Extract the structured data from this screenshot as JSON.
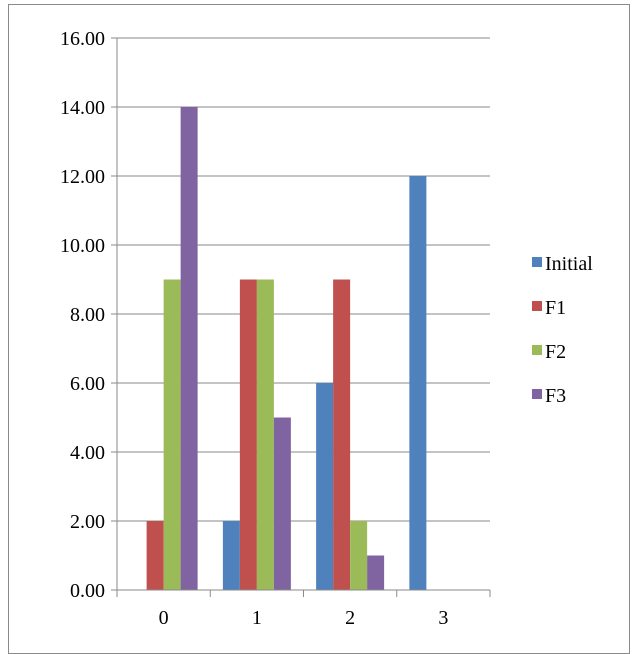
{
  "chart_data": {
    "type": "bar",
    "categories": [
      "0",
      "1",
      "2",
      "3"
    ],
    "series": [
      {
        "name": "Initial",
        "color": "#4F81BD",
        "values": [
          0,
          2,
          6,
          12
        ]
      },
      {
        "name": "F1",
        "color": "#C0504D",
        "values": [
          2,
          9,
          9,
          0
        ]
      },
      {
        "name": "F2",
        "color": "#9BBB59",
        "values": [
          9,
          9,
          2,
          0
        ]
      },
      {
        "name": "F3",
        "color": "#8064A2",
        "values": [
          14,
          5,
          1,
          0
        ]
      }
    ],
    "ylim": [
      0,
      16
    ],
    "yticks": [
      "0.00",
      "2.00",
      "4.00",
      "6.00",
      "8.00",
      "10.00",
      "12.00",
      "14.00",
      "16.00"
    ],
    "grid": true,
    "legend_position": "right"
  }
}
